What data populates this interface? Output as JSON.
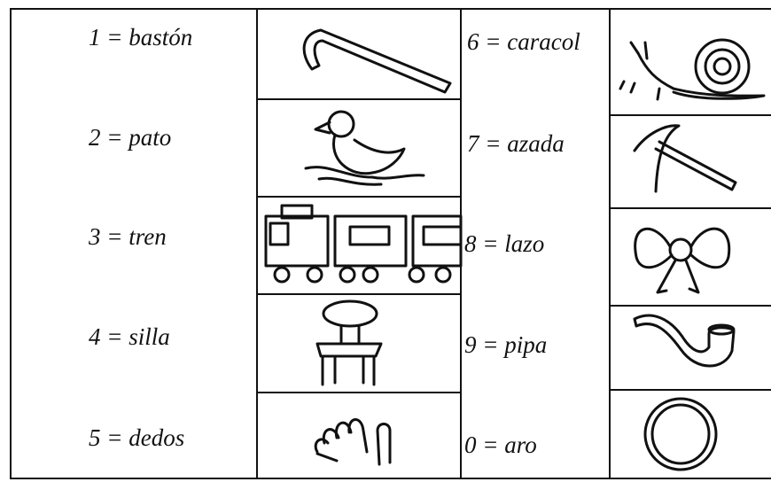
{
  "left_column": [
    "1 = bastón",
    "2 = pato",
    "3 = tren",
    "4 = silla",
    "5 = dedos"
  ],
  "right_column": [
    "6 = caracol",
    "7 = azada",
    "8 = lazo",
    "9 = pipa",
    "0 = aro"
  ]
}
